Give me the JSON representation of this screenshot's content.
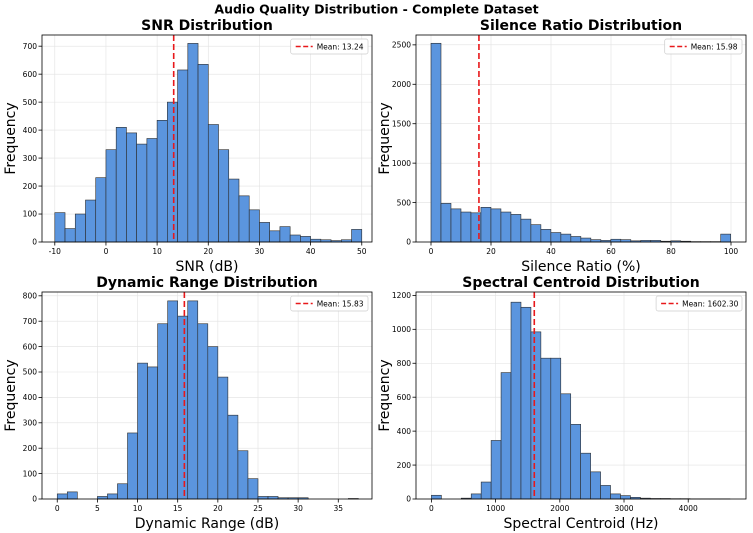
{
  "suptitle": "Audio Quality Distribution - Complete Dataset",
  "colors": {
    "bar_fill": "#5b95de",
    "bar_edge": "#2b2b2b",
    "mean_line": "#e8181a",
    "grid": "#e2e2e2"
  },
  "chart_data": [
    {
      "type": "bar",
      "title": "SNR Distribution",
      "xlabel": "SNR (dB)",
      "ylabel": "Frequency",
      "xlim": [
        -12.5,
        52
      ],
      "ylim": [
        0,
        740
      ],
      "xticks": [
        -10,
        0,
        10,
        20,
        30,
        40,
        50
      ],
      "yticks": [
        0,
        100,
        200,
        300,
        400,
        500,
        600,
        700
      ],
      "bin_start": -10,
      "bin_width": 2,
      "values": [
        105,
        48,
        100,
        150,
        230,
        330,
        410,
        390,
        350,
        370,
        435,
        500,
        615,
        710,
        635,
        420,
        330,
        225,
        165,
        115,
        70,
        40,
        55,
        25,
        20,
        10,
        8,
        5,
        8,
        45
      ],
      "mean": 13.24,
      "legend": "Mean: 13.24"
    },
    {
      "type": "bar",
      "title": "Silence Ratio Distribution",
      "xlabel": "Silence Ratio (%)",
      "ylabel": "Frequency",
      "xlim": [
        -5,
        105
      ],
      "ylim": [
        0,
        2625
      ],
      "xticks": [
        0,
        20,
        40,
        60,
        80,
        100
      ],
      "yticks": [
        0,
        500,
        1000,
        1500,
        2000,
        2500
      ],
      "bin_start": 0,
      "bin_width": 3.33,
      "values": [
        2520,
        490,
        420,
        380,
        370,
        440,
        420,
        380,
        350,
        290,
        220,
        160,
        120,
        100,
        70,
        50,
        30,
        20,
        35,
        30,
        15,
        20,
        20,
        10,
        15,
        10,
        5,
        5,
        5,
        100
      ],
      "mean": 15.98,
      "legend": "Mean: 15.98"
    },
    {
      "type": "bar",
      "title": "Dynamic Range Distribution",
      "xlabel": "Dynamic Range (dB)",
      "ylabel": "Frequency",
      "xlim": [
        -1.9,
        39.2
      ],
      "ylim": [
        0,
        815
      ],
      "xticks": [
        0,
        5,
        10,
        15,
        20,
        25,
        30,
        35
      ],
      "yticks": [
        0,
        100,
        200,
        300,
        400,
        500,
        600,
        700,
        800
      ],
      "bin_start": 0,
      "bin_width": 1.25,
      "values": [
        20,
        28,
        0,
        0,
        10,
        20,
        60,
        260,
        535,
        520,
        690,
        780,
        720,
        780,
        690,
        600,
        480,
        330,
        190,
        80,
        10,
        10,
        5,
        5,
        5,
        0,
        0,
        0,
        0,
        2
      ],
      "mean": 15.83,
      "legend": "Mean: 15.83"
    },
    {
      "type": "bar",
      "title": "Spectral Centroid Distribution",
      "xlabel": "Spectral Centroid (Hz)",
      "ylabel": "Frequency",
      "xlim": [
        -240,
        4900
      ],
      "ylim": [
        0,
        1220
      ],
      "xticks": [
        0,
        1000,
        2000,
        3000,
        4000
      ],
      "yticks": [
        0,
        200,
        400,
        600,
        800,
        1000,
        1200
      ],
      "bin_start": 0,
      "bin_width": 155,
      "values": [
        22,
        0,
        0,
        5,
        30,
        100,
        345,
        745,
        1160,
        1130,
        985,
        830,
        830,
        620,
        440,
        270,
        160,
        80,
        30,
        20,
        10,
        5,
        3,
        3,
        2,
        2,
        1,
        1,
        1,
        1
      ],
      "mean": 1602.3,
      "legend": "Mean: 1602.30"
    }
  ]
}
